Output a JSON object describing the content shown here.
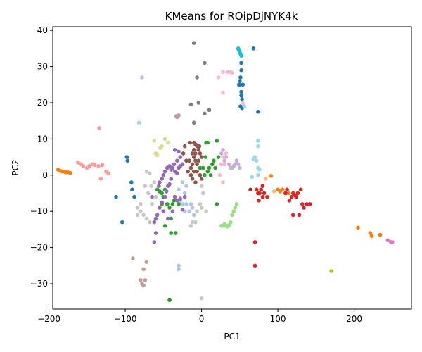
{
  "chart_data": {
    "type": "scatter",
    "title": "KMeans for ROipDjNYK4k",
    "xlabel": "PC1",
    "ylabel": "PC2",
    "xlim": [
      -195,
      275
    ],
    "ylim": [
      -37,
      41
    ],
    "xticks": [
      -200,
      -100,
      0,
      100,
      200
    ],
    "yticks": [
      -30,
      -20,
      -10,
      0,
      10,
      20,
      30,
      40
    ],
    "x_tick_labels": [
      "−200",
      "−100",
      "0",
      "100",
      "200"
    ],
    "y_tick_labels": [
      "−30",
      "−20",
      "−10",
      "0",
      "10",
      "20",
      "30",
      "40"
    ],
    "grid": false,
    "legend": "none",
    "series": [
      {
        "color": "#1f77b4",
        "points": [
          [
            50,
            25
          ],
          [
            51,
            27
          ],
          [
            52,
            23
          ],
          [
            53,
            21
          ],
          [
            51,
            19
          ],
          [
            53,
            18.5
          ],
          [
            52,
            29
          ],
          [
            52,
            31
          ],
          [
            54,
            25
          ],
          [
            50,
            26
          ],
          [
            52,
            22
          ],
          [
            49,
            25
          ],
          [
            68,
            35
          ],
          [
            74,
            17.5
          ],
          [
            -98,
            5
          ],
          [
            -97,
            4
          ],
          [
            -92,
            -2
          ],
          [
            -91,
            -4
          ],
          [
            -88,
            -6
          ],
          [
            -112,
            -6
          ],
          [
            -104,
            -13
          ]
        ]
      },
      {
        "color": "#aec7e8",
        "points": [
          [
            -78,
            27
          ],
          [
            -30,
            -4
          ],
          [
            -28,
            -7
          ],
          [
            -25,
            -2
          ],
          [
            -22,
            -5
          ],
          [
            -20,
            -3
          ],
          [
            -25,
            -8
          ],
          [
            -20,
            -8
          ],
          [
            -14,
            -8
          ],
          [
            -12,
            -9
          ],
          [
            -10,
            -11
          ],
          [
            -16,
            -10
          ],
          [
            -22,
            -10
          ],
          [
            -30,
            -26
          ],
          [
            -30,
            -25
          ]
        ]
      },
      {
        "color": "#ff7f0e",
        "points": [
          [
            -188,
            1.5
          ],
          [
            -185,
            1.2
          ],
          [
            -183,
            1
          ],
          [
            -180,
            1
          ],
          [
            -178,
            0.8
          ],
          [
            -175,
            0.8
          ],
          [
            -172,
            0.6
          ],
          [
            91,
            -0.2
          ],
          [
            100,
            -4
          ],
          [
            103,
            -4.5
          ],
          [
            106,
            -4
          ],
          [
            110,
            -5
          ],
          [
            114,
            -5
          ],
          [
            205,
            -14.5
          ],
          [
            221,
            -16
          ],
          [
            223,
            -16.8
          ],
          [
            234,
            -16.5
          ]
        ]
      },
      {
        "color": "#ffbb78",
        "points": [
          [
            84,
            -1
          ],
          [
            95,
            -4.5
          ]
        ]
      },
      {
        "color": "#2ca02c",
        "points": [
          [
            -58,
            -4
          ],
          [
            -55,
            -4.5
          ],
          [
            -52,
            -5
          ],
          [
            -50,
            -6
          ],
          [
            -48,
            -4
          ],
          [
            -52,
            -8
          ],
          [
            -45,
            -8
          ],
          [
            -42,
            -9
          ],
          [
            -40,
            -12
          ],
          [
            -38,
            -8
          ],
          [
            -36,
            -7
          ],
          [
            -40,
            -16
          ],
          [
            -34,
            -16
          ],
          [
            -48,
            -14
          ],
          [
            -42,
            -34.5
          ],
          [
            -30,
            -8
          ],
          [
            5,
            5
          ],
          [
            6,
            9
          ],
          [
            8,
            9
          ],
          [
            10,
            2
          ],
          [
            12,
            0
          ],
          [
            14,
            3
          ],
          [
            16,
            4
          ],
          [
            18,
            2
          ],
          [
            20,
            9.5
          ],
          [
            22,
            5
          ],
          [
            4,
            0
          ],
          [
            8,
            1
          ],
          [
            2,
            2
          ],
          [
            -2,
            2
          ],
          [
            20,
            -8
          ]
        ]
      },
      {
        "color": "#98df8a",
        "points": [
          [
            26,
            -14
          ],
          [
            28,
            -14
          ],
          [
            30,
            -13.5
          ],
          [
            32,
            -14
          ],
          [
            34,
            -14.2
          ],
          [
            36,
            -13.8
          ],
          [
            38,
            -13
          ],
          [
            40,
            -11
          ],
          [
            42,
            -10
          ],
          [
            44,
            -9
          ],
          [
            46,
            -8
          ]
        ]
      },
      {
        "color": "#d62728",
        "points": [
          [
            64,
            -4
          ],
          [
            72,
            -4
          ],
          [
            74,
            -5
          ],
          [
            76,
            -5
          ],
          [
            78,
            -4
          ],
          [
            80,
            -3
          ],
          [
            82,
            -5
          ],
          [
            86,
            -6
          ],
          [
            80,
            -6
          ],
          [
            75,
            -7
          ],
          [
            110,
            -5
          ],
          [
            112,
            -4
          ],
          [
            115,
            -7
          ],
          [
            118,
            -6
          ],
          [
            120,
            -5
          ],
          [
            122,
            -5.5
          ],
          [
            124,
            -6
          ],
          [
            126,
            -5
          ],
          [
            130,
            -4
          ],
          [
            132,
            -8
          ],
          [
            134,
            -9
          ],
          [
            138,
            -8
          ],
          [
            142,
            -8
          ],
          [
            120,
            -11
          ],
          [
            128,
            -11
          ],
          [
            70,
            -18.5
          ],
          [
            70,
            -25
          ]
        ]
      },
      {
        "color": "#ff9896",
        "points": [
          [
            -162,
            3.5
          ],
          [
            -158,
            3
          ],
          [
            -155,
            2.5
          ],
          [
            -150,
            2
          ],
          [
            -147,
            2.5
          ],
          [
            -143,
            3
          ],
          [
            -140,
            2.8
          ],
          [
            -135,
            2.5
          ],
          [
            -130,
            2.8
          ],
          [
            -125,
            1
          ],
          [
            -122,
            0.5
          ],
          [
            -132,
            -1
          ],
          [
            -134,
            13
          ]
        ]
      },
      {
        "color": "#9467bd",
        "points": [
          [
            -55,
            -2
          ],
          [
            -52,
            -1
          ],
          [
            -50,
            0
          ],
          [
            -48,
            1
          ],
          [
            -45,
            2
          ],
          [
            -42,
            2.5
          ],
          [
            -40,
            1.5
          ],
          [
            -38,
            2
          ],
          [
            -35,
            1
          ],
          [
            -32,
            0.5
          ],
          [
            -30,
            2
          ],
          [
            -28,
            2.5
          ],
          [
            -25,
            3
          ],
          [
            -35,
            7
          ],
          [
            -30,
            6.5
          ],
          [
            -28,
            5
          ],
          [
            -32,
            4
          ],
          [
            -36,
            3
          ],
          [
            -40,
            -1
          ],
          [
            -42,
            -2.5
          ],
          [
            -44,
            -3
          ],
          [
            -46,
            -4.5
          ],
          [
            -48,
            -6
          ],
          [
            -52,
            -7.5
          ],
          [
            -55,
            -9
          ],
          [
            -58,
            -11
          ],
          [
            -60,
            -12
          ],
          [
            -62,
            -13
          ],
          [
            -60,
            -16
          ],
          [
            -62,
            -18.5
          ],
          [
            -35,
            -6
          ],
          [
            -32,
            -7
          ],
          [
            -28,
            -6.5
          ],
          [
            -25,
            -9.5
          ],
          [
            -22,
            -6
          ],
          [
            -38,
            -10
          ],
          [
            -44,
            -12
          ],
          [
            -50,
            -10
          ],
          [
            -65,
            -6
          ],
          [
            -56,
            -3
          ]
        ]
      },
      {
        "color": "#c5b0d5",
        "points": [
          [
            36,
            3
          ],
          [
            38,
            2
          ],
          [
            40,
            2
          ],
          [
            42,
            2.5
          ],
          [
            44,
            3
          ],
          [
            46,
            4
          ],
          [
            48,
            3
          ],
          [
            50,
            2
          ],
          [
            30,
            4
          ],
          [
            32,
            5
          ],
          [
            26,
            6
          ],
          [
            28,
            7
          ]
        ]
      },
      {
        "color": "#8c564b",
        "points": [
          [
            -10,
            9
          ],
          [
            -8,
            8.5
          ],
          [
            -6,
            8
          ],
          [
            -4,
            7
          ],
          [
            -2,
            6
          ],
          [
            0,
            5
          ],
          [
            -12,
            6
          ],
          [
            -10,
            5
          ],
          [
            -8,
            4
          ],
          [
            -6,
            3
          ],
          [
            -12,
            3
          ],
          [
            -14,
            2
          ],
          [
            -18,
            1
          ],
          [
            -20,
            4
          ],
          [
            -24,
            6
          ],
          [
            -22,
            8
          ],
          [
            -16,
            4
          ],
          [
            -4,
            4
          ],
          [
            -10,
            1
          ],
          [
            -6,
            1
          ],
          [
            -2,
            0
          ],
          [
            0,
            -1
          ],
          [
            -8,
            -2
          ],
          [
            -12,
            -1
          ],
          [
            -14,
            0
          ],
          [
            -10,
            7
          ],
          [
            -3,
            8
          ],
          [
            -15,
            9
          ],
          [
            -8,
            6
          ]
        ]
      },
      {
        "color": "#c49c94",
        "points": [
          [
            -30,
            16.5
          ],
          [
            -33,
            16.3
          ],
          [
            -32,
            16
          ],
          [
            -80,
            -29
          ],
          [
            -78,
            -30
          ],
          [
            -76,
            -30.5
          ],
          [
            -74,
            -29
          ],
          [
            -76,
            -26
          ],
          [
            -72,
            -24
          ],
          [
            -90,
            -23
          ]
        ]
      },
      {
        "color": "#e377c2",
        "points": [
          [
            244,
            -18
          ],
          [
            248,
            -18.5
          ],
          [
            250,
            -18.5
          ]
        ]
      },
      {
        "color": "#f7b6d2",
        "points": [
          [
            28,
            28.5
          ],
          [
            34,
            28.5
          ],
          [
            38,
            28.5
          ],
          [
            40,
            28.3
          ],
          [
            22,
            27
          ],
          [
            28,
            22.8
          ],
          [
            28,
            5
          ],
          [
            32,
            6
          ],
          [
            26,
            3
          ],
          [
            30,
            3
          ],
          [
            24,
            0
          ],
          [
            28,
            -2
          ],
          [
            54,
            20
          ],
          [
            56,
            19
          ]
        ]
      },
      {
        "color": "#7f7f7f",
        "points": [
          [
            -10,
            36.5
          ],
          [
            4,
            31
          ],
          [
            -6,
            27
          ],
          [
            -4,
            20
          ],
          [
            -14,
            19.5
          ],
          [
            10,
            18
          ],
          [
            4,
            17
          ],
          [
            -10,
            14.5
          ]
        ]
      },
      {
        "color": "#c7c7c7",
        "points": [
          [
            -72,
            1
          ],
          [
            -68,
            0.5
          ],
          [
            -74,
            -3
          ],
          [
            -70,
            -5
          ],
          [
            -65,
            -8
          ],
          [
            -80,
            -8
          ],
          [
            -84,
            -9
          ],
          [
            -80,
            -10
          ],
          [
            -84,
            -11
          ],
          [
            -76,
            -11
          ],
          [
            -72,
            -12
          ],
          [
            -68,
            -13
          ],
          [
            -60,
            -6
          ],
          [
            -66,
            -3
          ],
          [
            -62,
            -2
          ],
          [
            0,
            -3
          ],
          [
            2,
            -5
          ],
          [
            -2,
            -8
          ],
          [
            0,
            -9
          ],
          [
            6,
            -10
          ],
          [
            -6,
            -10
          ],
          [
            -12,
            -13
          ],
          [
            -14,
            -14
          ],
          [
            -8,
            -13
          ],
          [
            0,
            -34
          ]
        ]
      },
      {
        "color": "#bcbd22",
        "points": [
          [
            170,
            -26.5
          ]
        ]
      },
      {
        "color": "#dbdb8d",
        "points": [
          [
            -62,
            9.5
          ],
          [
            -60,
            6
          ],
          [
            -58,
            5.5
          ],
          [
            -54,
            7.5
          ],
          [
            -52,
            8
          ],
          [
            -48,
            10
          ],
          [
            -44,
            9
          ]
        ]
      },
      {
        "color": "#17becf",
        "points": [
          [
            48,
            35
          ],
          [
            49,
            34.5
          ],
          [
            50,
            34
          ],
          [
            51,
            33.5
          ],
          [
            52,
            33
          ]
        ]
      },
      {
        "color": "#9edae5",
        "points": [
          [
            -82,
            14.5
          ],
          [
            74,
            9.5
          ],
          [
            74,
            8
          ],
          [
            70,
            5
          ],
          [
            72,
            4
          ],
          [
            68,
            4.5
          ],
          [
            74,
            2
          ],
          [
            76,
            1.5
          ],
          [
            66,
            -0.5
          ],
          [
            74,
            0
          ],
          [
            56,
            19
          ]
        ]
      }
    ]
  }
}
